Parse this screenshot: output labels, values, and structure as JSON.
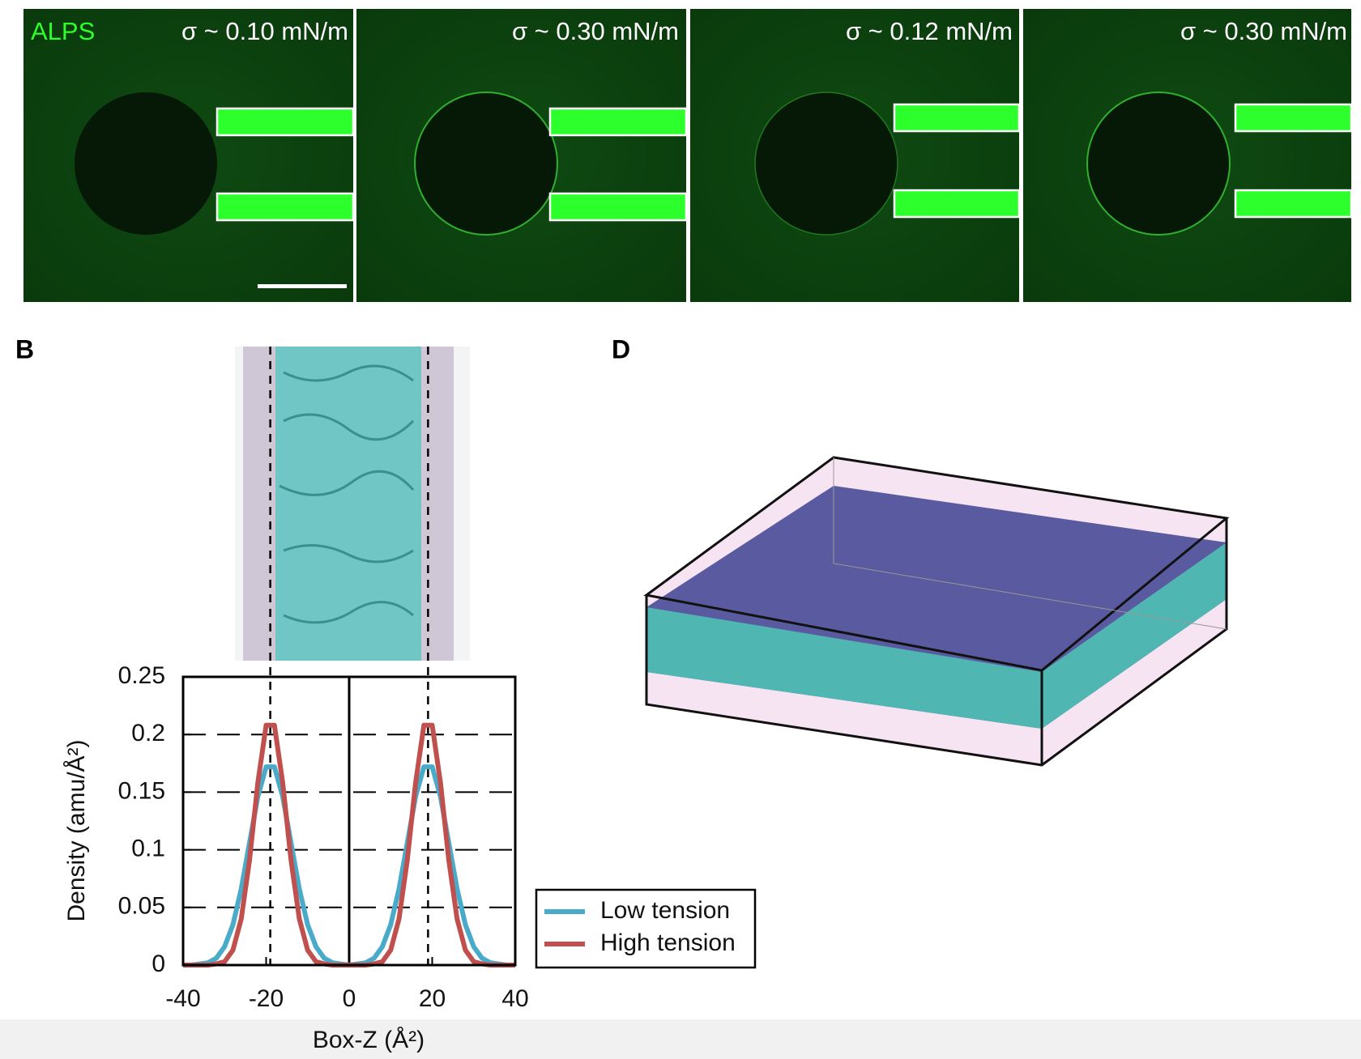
{
  "panels": {
    "stain": "ALPS",
    "tensions": [
      "σ ~ 0.10 mN/m",
      "σ ~ 0.30 mN/m",
      "σ ~ 0.12 mN/m",
      "σ ~ 0.30 mN/m"
    ]
  },
  "panel_labels": [
    "B",
    "D"
  ],
  "chart_data": {
    "type": "line",
    "x_label": "Box-Z (Å²)",
    "y_label": "Density (amu/Å²)",
    "x": [
      -40,
      -38,
      -36,
      -34,
      -32,
      -30,
      -28,
      -26,
      -24,
      -22,
      -20,
      -18,
      -16,
      -14,
      -12,
      -10,
      -8,
      -6,
      -4,
      -2,
      0,
      2,
      4,
      6,
      8,
      10,
      12,
      14,
      16,
      18,
      20,
      22,
      24,
      26,
      28,
      30,
      32,
      34,
      36,
      38,
      40
    ],
    "series": [
      {
        "name": "Low tension",
        "color": "#4aaac9",
        "values": [
          0,
          0,
          0.001,
          0.002,
          0.006,
          0.016,
          0.035,
          0.066,
          0.106,
          0.146,
          0.172,
          0.172,
          0.146,
          0.106,
          0.066,
          0.035,
          0.016,
          0.006,
          0.002,
          0.001,
          0,
          0.001,
          0.002,
          0.006,
          0.016,
          0.035,
          0.066,
          0.106,
          0.146,
          0.172,
          0.172,
          0.146,
          0.106,
          0.066,
          0.035,
          0.016,
          0.006,
          0.002,
          0.001,
          0,
          0
        ]
      },
      {
        "name": "High tension",
        "color": "#c0504d",
        "values": [
          0,
          0,
          0,
          0,
          0.001,
          0.003,
          0.013,
          0.04,
          0.091,
          0.158,
          0.208,
          0.208,
          0.158,
          0.091,
          0.04,
          0.013,
          0.003,
          0.001,
          0,
          0,
          0,
          0,
          0,
          0.001,
          0.003,
          0.013,
          0.04,
          0.091,
          0.158,
          0.208,
          0.208,
          0.158,
          0.091,
          0.04,
          0.013,
          0.003,
          0.001,
          0,
          0,
          0,
          0
        ]
      }
    ],
    "xlim": [
      -40,
      40
    ],
    "ylim": [
      0,
      0.25
    ],
    "xticks": [
      -40,
      -20,
      0,
      20,
      40
    ],
    "yticks": [
      0,
      0.05,
      0.1,
      0.15,
      0.2,
      0.25
    ],
    "grid": true,
    "vlines": [
      -19,
      19
    ],
    "legend": "outside-lower-right"
  }
}
